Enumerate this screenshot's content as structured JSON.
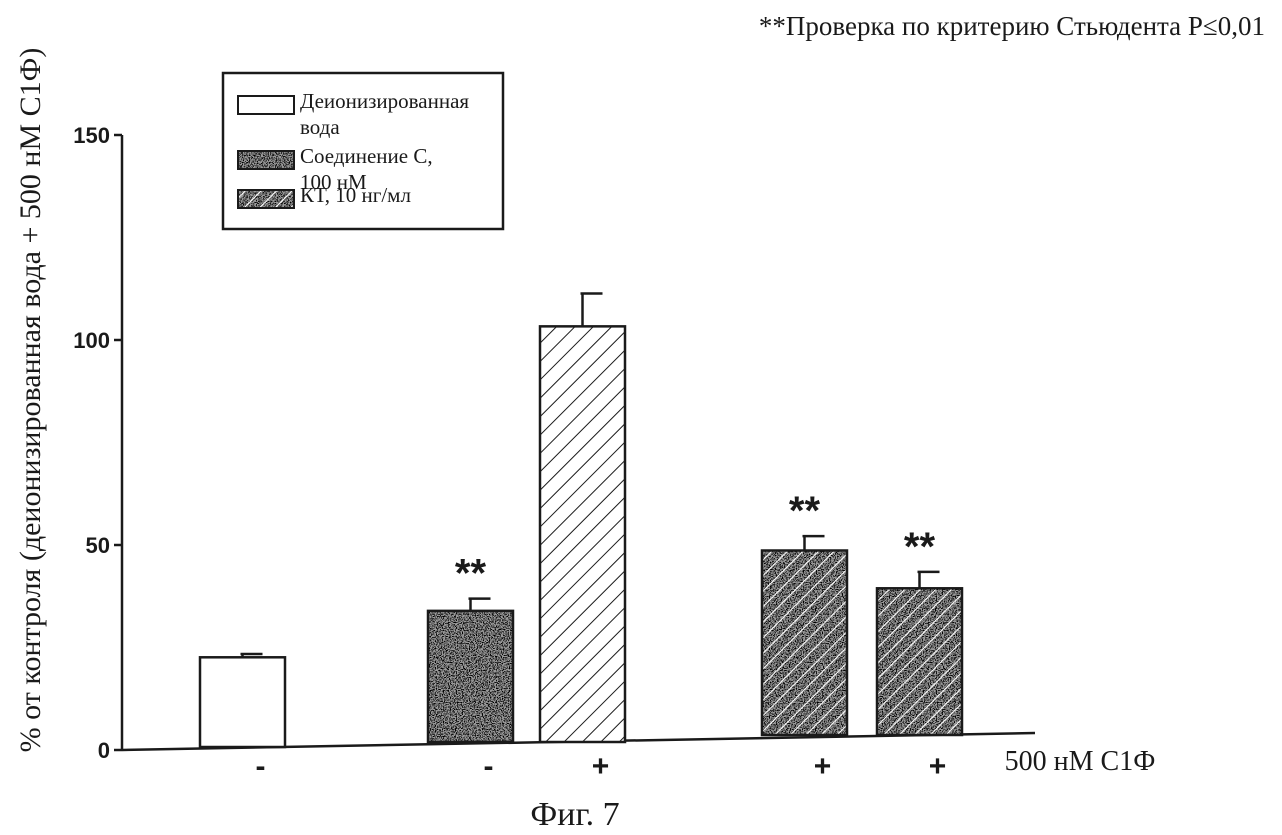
{
  "note": "**Проверка по критерию Стьюдента P≤0,01",
  "figure_caption": "Фиг. 7",
  "colors": {
    "ink": "#1a1a1a",
    "paper": "#ffffff",
    "stipple_bg": "#8a8a8a"
  },
  "chart_data": {
    "type": "bar",
    "ylabel": "% от контроля (деионизированная вода + 500 нМ С1Ф)",
    "ylim": [
      0,
      150
    ],
    "yticks": [
      0,
      50,
      100,
      150
    ],
    "grid": false,
    "legend_position": "top-left",
    "legend": [
      {
        "label_lines": [
          "Деионизированная",
          "вода"
        ],
        "fill": "white"
      },
      {
        "label_lines": [
          "Соединение С,",
          "100 нМ"
        ],
        "fill": "stipple"
      },
      {
        "label_lines": [
          "КТ, 10 нг/мл"
        ],
        "fill": "stipple-hatch"
      }
    ],
    "x_axis_label": "500 нМ С1Ф",
    "bars": [
      {
        "group": 0,
        "sign": "-",
        "series": "Деионизированная вода",
        "fill": "white",
        "value": 22.5,
        "error": 0.8,
        "significance": ""
      },
      {
        "group": 1,
        "sign": "-",
        "series": "Соединение С, 100 нМ",
        "fill": "stipple",
        "value": 33.5,
        "error": 3.0,
        "significance": "**"
      },
      {
        "group": 1,
        "sign": "+",
        "series": "Деионизированная вода",
        "fill": "hatch",
        "value": 102,
        "error": 8,
        "significance": ""
      },
      {
        "group": 2,
        "sign": "+",
        "series": "КТ, 10 нг/мл",
        "fill": "stipple-hatch",
        "value": 47.5,
        "error": 3.5,
        "significance": "**"
      },
      {
        "group": 2,
        "sign": "+",
        "series": "КТ, 10 нг/мл",
        "fill": "stipple-hatch",
        "value": 38.5,
        "error": 4.0,
        "significance": "**"
      }
    ]
  }
}
